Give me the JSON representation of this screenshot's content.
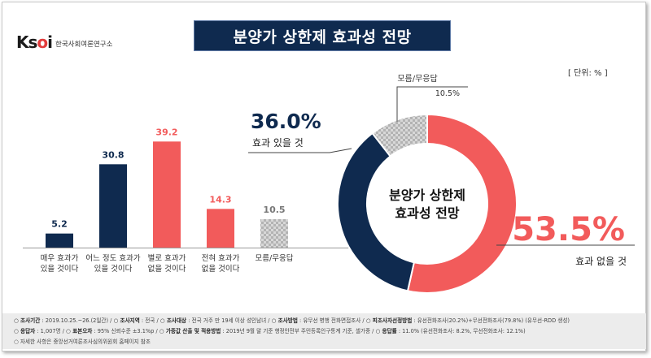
{
  "header": {
    "logo_mark": "Ksoi",
    "logo_text": "한국사회여론연구소",
    "title": "분양가 상한제 효과성 전망",
    "unit": "[ 단위: % ]"
  },
  "chart_data": [
    {
      "type": "bar",
      "title": "분양가 상한제 효과성 전망",
      "categories": [
        [
          "매우 효과가",
          "있을 것이다"
        ],
        [
          "어느 정도 효과가",
          "있을 것이다"
        ],
        [
          "별로 효과가",
          "없을 것이다"
        ],
        [
          "전혀 효과가",
          "없을 것이다"
        ],
        [
          "모름/무응답"
        ]
      ],
      "values": [
        5.2,
        30.8,
        39.2,
        14.3,
        10.5
      ],
      "value_labels": [
        "5.2",
        "30.8",
        "39.2",
        "14.3",
        "10.5"
      ],
      "colors": [
        "#0f2a4f",
        "#0f2a4f",
        "#f25b5b",
        "#f25b5b",
        "#bdbdbd"
      ],
      "ylim": [
        0,
        45
      ]
    },
    {
      "type": "pie",
      "center_label": [
        "분양가 상한제",
        "효과성 전망"
      ],
      "slices": [
        {
          "label": "효과 없을 것",
          "value": 53.5,
          "value_label": "53.5%",
          "color": "#f25b5b"
        },
        {
          "label": "효과 있을 것",
          "value": 36.0,
          "value_label": "36.0%",
          "color": "#0f2a4f"
        },
        {
          "label": "모름/무응답",
          "value": 10.5,
          "value_label": "10.5%",
          "color": "#bdbdbd"
        }
      ]
    }
  ],
  "footer": {
    "line1": [
      {
        "k": "○ 조사기간",
        "v": " : 2019.10.25.~26.(2일간)  / "
      },
      {
        "k": "○ 조사지역",
        "v": " : 전국  / "
      },
      {
        "k": "○ 조사대상",
        "v": " : 전국 거주 만 19세 이상 성인남녀  / "
      },
      {
        "k": "○ 조사방법",
        "v": " : 유무선 병행 전화면접조사  / "
      },
      {
        "k": "○ 피조사자선정방법",
        "v": " : 유선전화조사(20.2%)+무선전화조사(79.8%) (유무선-RDD 생성)"
      }
    ],
    "line2": [
      {
        "k": "○ 응답자",
        "v": " : 1,007명  / "
      },
      {
        "k": "○ 표본오차",
        "v": " : 95% 신뢰수준 ±3.1%p  / "
      },
      {
        "k": "○ 가중값 산출 및 적용방법",
        "v": " : 2019년 9월 말 기준 행정안전부 주민등록인구통계 기준, 셀가중  / "
      },
      {
        "k": "○ 응답률",
        "v": " : 11.0% (유선전화조사: 8.2%, 무선전화조사: 12.1%)"
      }
    ],
    "line3": "○ 자세한 사항은 중앙선거여론조사심의위원회 홈페이지 참조"
  }
}
